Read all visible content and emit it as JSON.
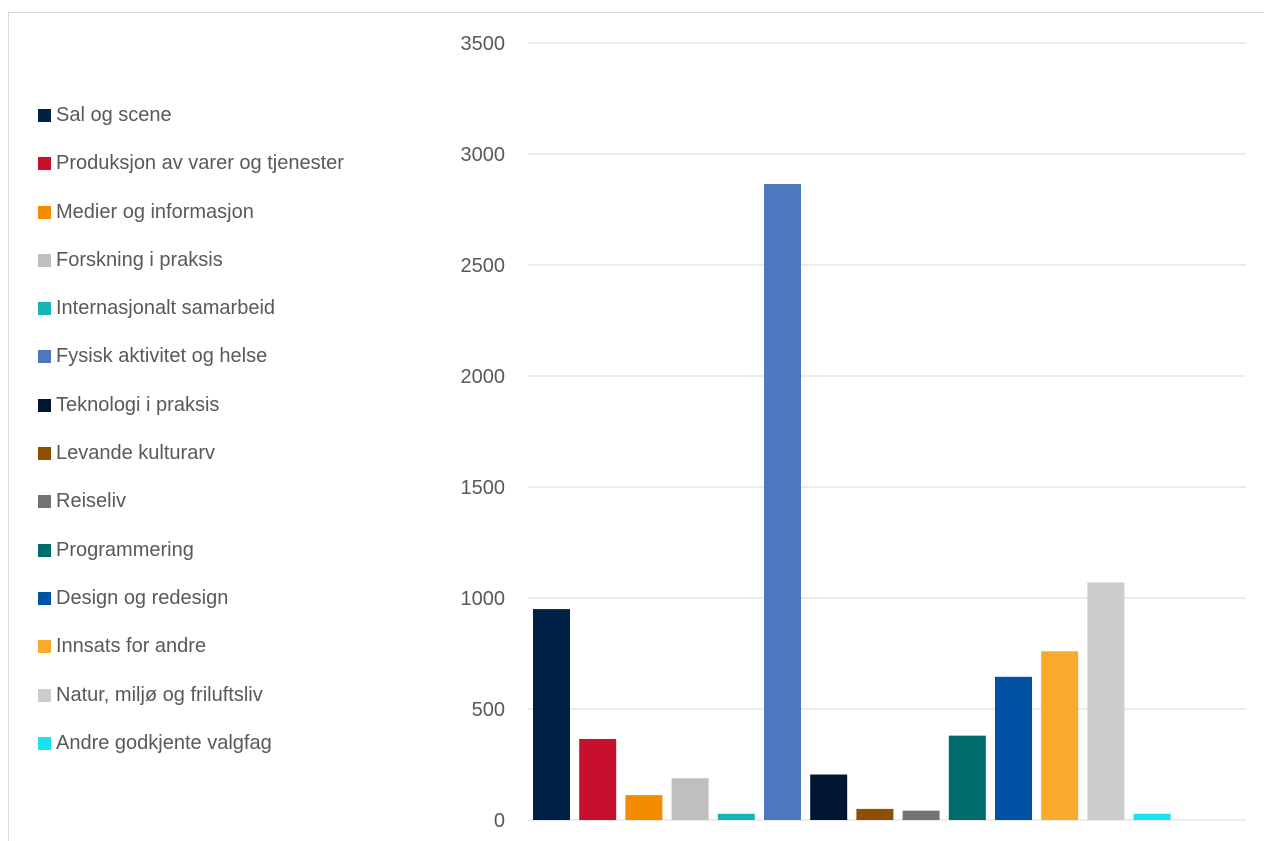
{
  "chart_data": {
    "type": "bar",
    "title": "",
    "xlabel": "",
    "ylabel": "",
    "ylim": [
      0,
      3500
    ],
    "yticks": [
      0,
      500,
      1000,
      1500,
      2000,
      2500,
      3000,
      3500
    ],
    "grid": true,
    "legend_position": "left",
    "categories": [
      "Sal og scene",
      "Produksjon av varer og tjenester",
      "Medier og informasjon",
      "Forskning i praksis",
      "Internasjonalt samarbeid",
      "Fysisk aktivitet og helse",
      "Teknologi i praksis",
      "Levande kulturarv",
      "Reiseliv",
      "Programmering",
      "Design og redesign",
      "Innsats for andre",
      "Natur, miljø og friluftsliv",
      "Andre godkjente valgfag"
    ],
    "values": [
      950,
      365,
      112,
      188,
      28,
      2865,
      205,
      50,
      42,
      380,
      645,
      760,
      1070,
      28
    ],
    "colors": [
      "#002147",
      "#C8102E",
      "#F28C00",
      "#BFBFBF",
      "#16B3B8",
      "#4E78BE",
      "#001530",
      "#8C5000",
      "#737373",
      "#006B6B",
      "#0052A5",
      "#FBA92C",
      "#CCCCCC",
      "#1CE1F0"
    ]
  }
}
